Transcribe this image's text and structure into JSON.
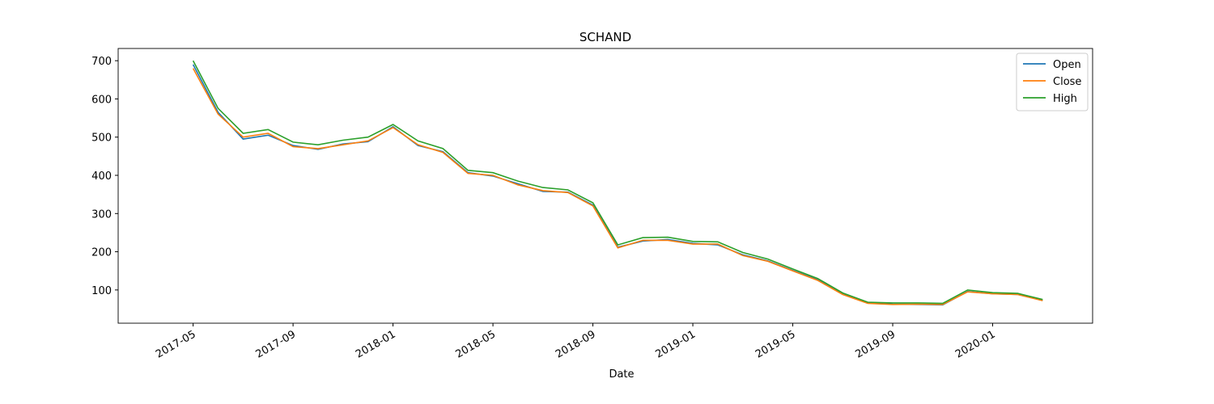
{
  "chart_data": {
    "type": "line",
    "title": "SCHAND",
    "xlabel": "Date",
    "x": [
      "2017-05",
      "2017-06",
      "2017-07",
      "2017-08",
      "2017-09",
      "2017-10",
      "2017-11",
      "2017-12",
      "2018-01",
      "2018-02",
      "2018-03",
      "2018-04",
      "2018-05",
      "2018-06",
      "2018-07",
      "2018-08",
      "2018-09",
      "2018-10",
      "2018-11",
      "2018-12",
      "2019-01",
      "2019-02",
      "2019-03",
      "2019-04",
      "2019-05",
      "2019-06",
      "2019-07",
      "2019-08",
      "2019-09",
      "2019-10",
      "2019-11",
      "2019-12",
      "2020-01",
      "2020-02",
      "2020-03"
    ],
    "series": [
      {
        "name": "Open",
        "color": "#1f77b4",
        "values": [
          690,
          565,
          495,
          505,
          478,
          468,
          482,
          488,
          527,
          478,
          462,
          407,
          398,
          378,
          358,
          356,
          322,
          212,
          228,
          232,
          222,
          218,
          192,
          176,
          151,
          127,
          89,
          66,
          63,
          62,
          61,
          96,
          90,
          88,
          73
        ]
      },
      {
        "name": "Close",
        "color": "#ff7f0e",
        "values": [
          680,
          560,
          500,
          510,
          475,
          470,
          480,
          490,
          525,
          480,
          460,
          405,
          400,
          375,
          360,
          355,
          320,
          210,
          230,
          230,
          220,
          220,
          190,
          175,
          150,
          125,
          88,
          65,
          62,
          63,
          62,
          95,
          90,
          88,
          72
        ]
      },
      {
        "name": "High",
        "color": "#2ca02c",
        "values": [
          700,
          575,
          510,
          520,
          487,
          480,
          492,
          500,
          533,
          490,
          470,
          413,
          407,
          385,
          368,
          362,
          328,
          218,
          237,
          238,
          227,
          226,
          198,
          181,
          155,
          130,
          92,
          68,
          66,
          66,
          65,
          100,
          93,
          91,
          75
        ]
      }
    ],
    "xlim": [
      "2017-02",
      "2020-05"
    ],
    "xticks": [
      "2017-05",
      "2017-09",
      "2018-01",
      "2018-05",
      "2018-09",
      "2019-01",
      "2019-05",
      "2019-09",
      "2020-01"
    ],
    "ylim": [
      13,
      732
    ],
    "yticks": [
      100,
      200,
      300,
      400,
      500,
      600,
      700
    ],
    "legend": "upper right"
  }
}
